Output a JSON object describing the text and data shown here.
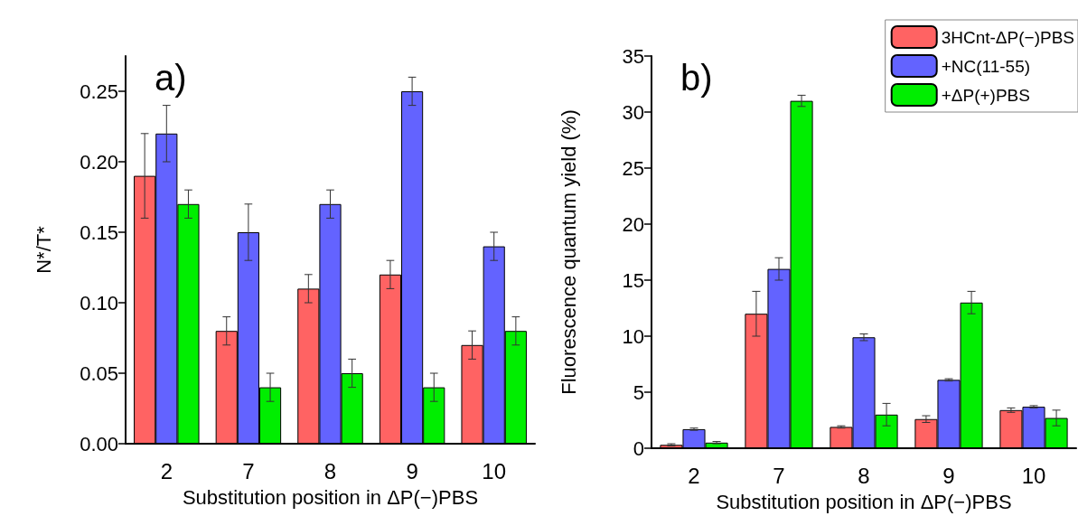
{
  "chart_data": [
    {
      "type": "bar",
      "xlabel": "Substitution position in ΔP(−)PBS",
      "ylabel": "N*/T*",
      "annotations": [
        "a)"
      ],
      "categories": [
        "2",
        "7",
        "8",
        "9",
        "10"
      ],
      "ylim": [
        0,
        0.275
      ],
      "yticks": [
        {
          "value": 0,
          "label": "0.00"
        },
        0.05,
        {
          "value": 0.1,
          "label": "0.10"
        },
        0.15,
        {
          "value": 0.2,
          "label": "0.20"
        },
        0.25
      ],
      "grid": false,
      "legend": false,
      "series": [
        {
          "color": "#ff6363",
          "values": [
            0.19,
            0.08,
            0.11,
            0.12,
            0.07
          ],
          "errors": [
            0.03,
            0.01,
            0.01,
            0.01,
            0.01
          ]
        },
        {
          "color": "#6363ff",
          "values": [
            0.22,
            0.15,
            0.17,
            0.25,
            0.14
          ],
          "errors": [
            0.02,
            0.02,
            0.01,
            0.01,
            0.01
          ]
        },
        {
          "color": "#00ee00",
          "values": [
            0.17,
            0.04,
            0.05,
            0.04,
            0.08
          ],
          "errors": [
            0.01,
            0.01,
            0.01,
            0.01,
            0.01
          ]
        }
      ]
    },
    {
      "type": "bar",
      "xlabel": "Substitution position in ΔP(−)PBS",
      "ylabel": "Fluorescence quantum yield (%)",
      "annotations": [
        "b)"
      ],
      "categories": [
        "2",
        "7",
        "8",
        "9",
        "10"
      ],
      "ylim": [
        0,
        35
      ],
      "yticks": [
        0,
        5,
        10,
        15,
        20,
        25,
        30,
        35
      ],
      "grid": false,
      "legend": "top right",
      "series": [
        {
          "name": "3HCnt-ΔP(−)PBS",
          "color": "#ff6363",
          "values": [
            0.3,
            12,
            1.9,
            2.6,
            3.4
          ],
          "errors": [
            0.1,
            2,
            0.1,
            0.3,
            0.2
          ]
        },
        {
          "name": "+NC(11-55)",
          "color": "#6363ff",
          "values": [
            1.7,
            16,
            9.9,
            6.1,
            3.7
          ],
          "errors": [
            0.1,
            1,
            0.3,
            0.1,
            0.1
          ]
        },
        {
          "name": "+ΔP(+)PBS",
          "color": "#00ee00",
          "values": [
            0.5,
            31,
            3,
            13,
            2.7
          ],
          "errors": [
            0.1,
            0.5,
            1,
            1,
            0.7
          ]
        }
      ]
    }
  ]
}
